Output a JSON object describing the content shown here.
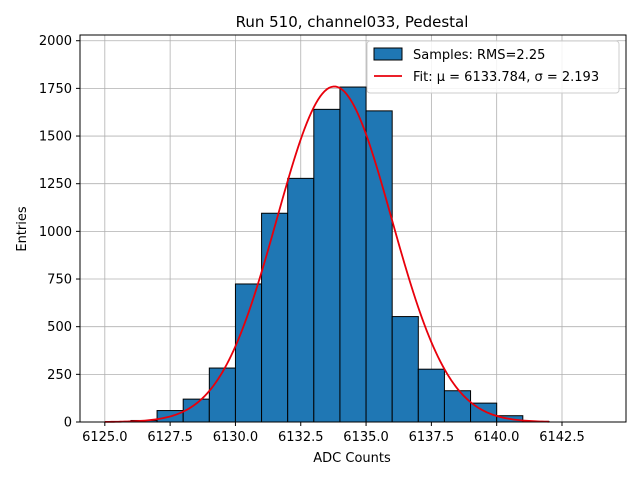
{
  "chart_data": {
    "type": "bar",
    "title": "Run 510, channel033, Pedestal",
    "xlabel": "ADC Counts",
    "ylabel": "Entries",
    "xlim": [
      6124.05,
      6144.95
    ],
    "ylim": [
      0,
      2030
    ],
    "x_ticks": [
      6125.0,
      6127.5,
      6130.0,
      6132.5,
      6135.0,
      6137.5,
      6140.0,
      6142.5
    ],
    "x_tick_labels": [
      "6125.0",
      "6127.5",
      "6130.0",
      "6132.5",
      "6135.0",
      "6137.5",
      "6140.0",
      "6142.5"
    ],
    "y_ticks": [
      0,
      250,
      500,
      750,
      1000,
      1250,
      1500,
      1750,
      2000
    ],
    "y_tick_labels": [
      "0",
      "250",
      "500",
      "750",
      "1000",
      "1250",
      "1500",
      "1750",
      "2000"
    ],
    "grid": true,
    "legend_position": "top-right",
    "histogram": {
      "name": "Samples: RMS=2.25",
      "color": "#1f77b4",
      "edge_color": "#000000",
      "bin_edges": [
        6125.0,
        6126.0,
        6127.0,
        6128.0,
        6129.0,
        6130.0,
        6131.0,
        6132.0,
        6133.0,
        6134.0,
        6135.0,
        6136.0,
        6137.0,
        6138.0,
        6139.0,
        6140.0,
        6141.0,
        6142.0,
        6143.0,
        6144.0
      ],
      "counts": [
        0,
        8,
        60,
        120,
        283,
        724,
        1095,
        1278,
        1640,
        1757,
        1632,
        553,
        277,
        164,
        99,
        33,
        3,
        0,
        0
      ]
    },
    "fit": {
      "name": "Fit: μ = 6133.784, σ = 2.193",
      "color": "#e8000b",
      "mu": 6133.784,
      "sigma": 2.193,
      "amplitude": 1760,
      "x_range": [
        6125.0,
        6142.0
      ]
    }
  }
}
